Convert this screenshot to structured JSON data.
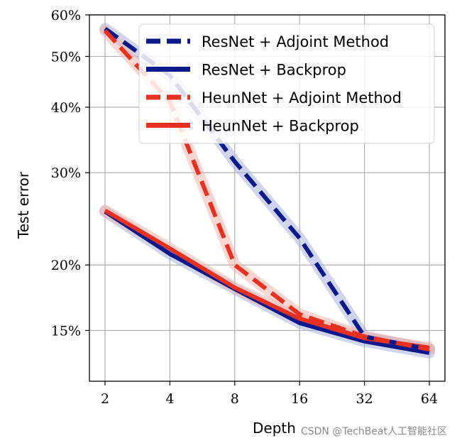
{
  "chart_data": {
    "type": "line",
    "xlabel": "Depth",
    "ylabel": "Test error",
    "x": [
      2,
      4,
      8,
      16,
      32,
      64
    ],
    "x_ticks": [
      "2",
      "4",
      "8",
      "16",
      "32",
      "64"
    ],
    "x_scale": "log2",
    "y_scale": "log",
    "ylim": [
      12.0,
      60.0
    ],
    "y_ticks": [
      {
        "value": 15,
        "label": "15%"
      },
      {
        "value": 20,
        "label": "20%"
      },
      {
        "value": 30,
        "label": "30%"
      },
      {
        "value": 40,
        "label": "40%"
      },
      {
        "value": 50,
        "label": "50%"
      },
      {
        "value": 60,
        "label": "60%"
      }
    ],
    "grid": true,
    "legend_position": "top-right",
    "series": [
      {
        "name": "ResNet + Adjoint Method",
        "color": "#0a1a8c",
        "dash": true,
        "band_color": "#aab0dd",
        "values": [
          56.5,
          46.0,
          31.5,
          22.5,
          14.6,
          13.8
        ]
      },
      {
        "name": "ResNet + Backprop",
        "color": "#0a1a8c",
        "dash": false,
        "band_color": "#aab0dd",
        "values": [
          25.3,
          21.0,
          18.0,
          15.5,
          14.3,
          13.6
        ]
      },
      {
        "name": "HeunNet + Adjoint Method",
        "color": "#e83020",
        "dash": true,
        "band_color": "#f5b5ad",
        "values": [
          56.0,
          41.0,
          20.0,
          16.1,
          14.6,
          13.8
        ]
      },
      {
        "name": "HeunNet + Backprop",
        "color": "#e83020",
        "dash": false,
        "band_color": "#f5b5ad",
        "values": [
          25.4,
          21.5,
          18.1,
          15.8,
          14.5,
          13.9
        ]
      }
    ]
  },
  "watermark": "CSDN @TechBeat人工智能社区"
}
